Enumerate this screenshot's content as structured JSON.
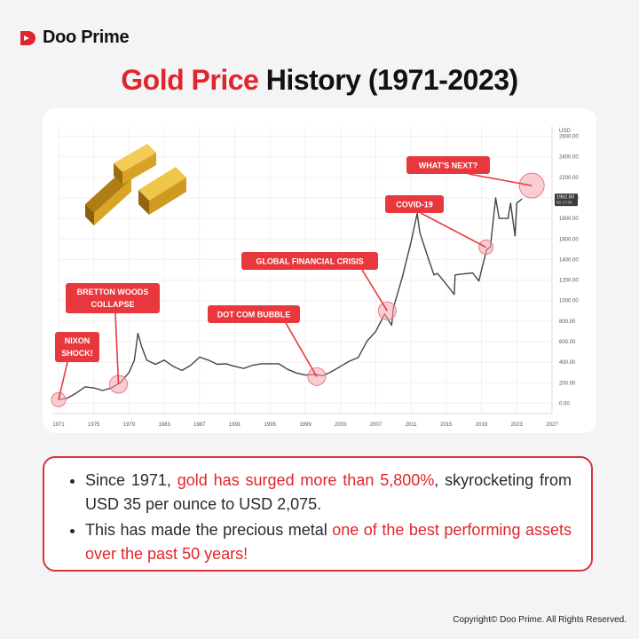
{
  "brand": {
    "name": "Doo Prime",
    "color": "#e0262c"
  },
  "title": {
    "accent": "Gold Price",
    "rest": " History (1971-2023)"
  },
  "chart_data": {
    "type": "line",
    "title": "",
    "ylabel": "USD",
    "xlim": [
      1971,
      2027
    ],
    "ylim": [
      -100,
      2700
    ],
    "x_ticks": [
      "1971",
      "1975",
      "1979",
      "1983",
      "1987",
      "1991",
      "1995",
      "1999",
      "2003",
      "2007",
      "2011",
      "2015",
      "2019",
      "2023",
      "2027"
    ],
    "y_ticks": [
      "0.00",
      "200.00",
      "400.00",
      "600.00",
      "800.00",
      "1000.00",
      "1200.00",
      "1400.00",
      "1600.00",
      "1800.00",
      "2000.00",
      "2200.00",
      "2400.00",
      "2600.00"
    ],
    "last_value_badge": "1962.80",
    "last_value_badge_sub": "00 17:06",
    "line_color": "#444444",
    "series": [
      {
        "x": [
          1971,
          1972,
          1973,
          1974,
          1975,
          1976,
          1977,
          1978,
          1979,
          1979.6,
          1980,
          1980.4,
          1981,
          1982,
          1983,
          1984,
          1985,
          1986,
          1987,
          1988,
          1989,
          1990,
          1991,
          1992,
          1993,
          1994,
          1995,
          1996,
          1997,
          1998,
          1999,
          2000,
          2001,
          2002,
          2003,
          2004,
          2005,
          2006,
          2007,
          2008,
          2008.8,
          2009,
          2010,
          2011,
          2011.7,
          2012,
          2013,
          2013.6,
          2014,
          2015,
          2015.9,
          2016,
          2017,
          2018,
          2018.7,
          2019,
          2019.6,
          2020,
          2020.6,
          2021,
          2022,
          2022.3,
          2022.8,
          2023,
          2023.6
        ],
        "y": [
          35,
          50,
          100,
          160,
          150,
          125,
          150,
          200,
          300,
          420,
          680,
          560,
          420,
          380,
          420,
          360,
          320,
          370,
          450,
          420,
          380,
          385,
          360,
          340,
          370,
          385,
          385,
          385,
          330,
          295,
          275,
          280,
          270,
          310,
          360,
          410,
          445,
          605,
          700,
          870,
          760,
          930,
          1225,
          1570,
          1850,
          1660,
          1400,
          1250,
          1265,
          1160,
          1060,
          1250,
          1260,
          1270,
          1190,
          1300,
          1500,
          1520,
          2000,
          1800,
          1800,
          1950,
          1630,
          1950,
          1990
        ]
      }
    ],
    "annotations": [
      {
        "label": "NIXON",
        "label2": "SHOCK!",
        "x": 1971,
        "y": 35
      },
      {
        "label": "BRETTON WOODS",
        "label2": "COLLAPSE",
        "x": 1977.8,
        "y": 185
      },
      {
        "label": "DOT COM BUBBLE",
        "label2": "",
        "x": 2000.3,
        "y": 260
      },
      {
        "label": "GLOBAL FINANCIAL CRISIS",
        "label2": "",
        "x": 2008.3,
        "y": 900
      },
      {
        "label": "COVID-19",
        "label2": "",
        "x": 2019.5,
        "y": 1520
      },
      {
        "label": "WHAT'S NEXT?",
        "label2": "",
        "x": 2024.7,
        "y": 2120
      }
    ]
  },
  "info": {
    "bullet1_pre": "Since 1971, ",
    "bullet1_hl": "gold has surged more than 5,800%",
    "bullet1_post": ", skyrocketing from USD 35 per ounce to USD 2,075.",
    "bullet2_pre": "This has made the precious metal ",
    "bullet2_hl": "one of the best performing assets over the past 50 years!"
  },
  "copyright": "Copyright© Doo Prime. All Rights Reserved.",
  "colors": {
    "accent": "#e0262c",
    "callout": "#e8383d",
    "gold": "#e3b028"
  }
}
